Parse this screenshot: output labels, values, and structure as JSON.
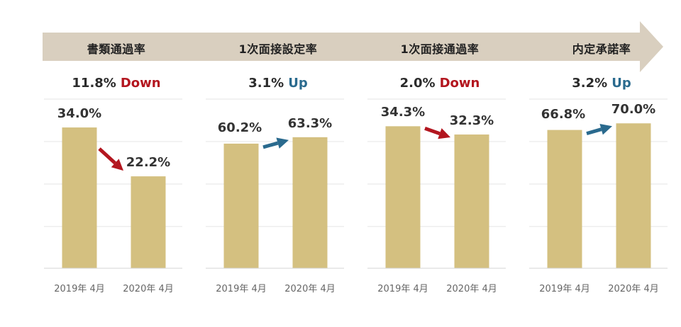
{
  "colors": {
    "banner": "#d9cfbf",
    "bar": "#d4c080",
    "down": "#b3161f",
    "up": "#2a6a8e",
    "grid": "#e6e6e6"
  },
  "chart_data": [
    {
      "type": "bar",
      "title": "書類通過率",
      "change": {
        "value": "11.8%",
        "direction": "Down"
      },
      "categories": [
        "2019年 4月",
        "2020年 4月"
      ],
      "values": [
        34.0,
        22.2
      ],
      "value_labels": [
        "34.0%",
        "22.2%"
      ],
      "ylim": [
        0,
        40
      ],
      "grid": true
    },
    {
      "type": "bar",
      "title": "1次面接設定率",
      "change": {
        "value": "3.1%",
        "direction": "Up"
      },
      "categories": [
        "2019年 4月",
        "2020年 4月"
      ],
      "values": [
        60.2,
        63.3
      ],
      "value_labels": [
        "60.2%",
        "63.3%"
      ],
      "ylim": [
        0,
        80
      ],
      "grid": true
    },
    {
      "type": "bar",
      "title": "1次面接通過率",
      "change": {
        "value": "2.0%",
        "direction": "Down"
      },
      "categories": [
        "2019年 4月",
        "2020年 4月"
      ],
      "values": [
        34.3,
        32.3
      ],
      "value_labels": [
        "34.3%",
        "32.3%"
      ],
      "ylim": [
        0,
        40
      ],
      "grid": true
    },
    {
      "type": "bar",
      "title": "内定承諾率",
      "change": {
        "value": "3.2%",
        "direction": "Up"
      },
      "categories": [
        "2019年 4月",
        "2020年 4月"
      ],
      "values": [
        66.8,
        70.0
      ],
      "value_labels": [
        "66.8%",
        "70.0%"
      ],
      "ylim": [
        0,
        80
      ],
      "grid": true
    }
  ]
}
